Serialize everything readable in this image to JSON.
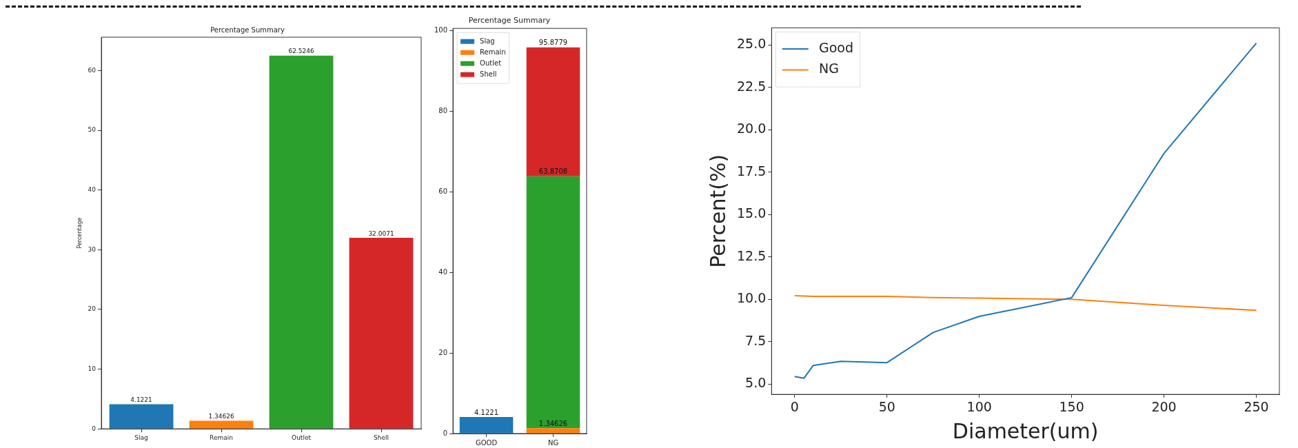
{
  "chart_data": [
    {
      "type": "bar",
      "title": "Percentage Summary",
      "ylabel": "Percentage",
      "categories": [
        "Slag",
        "Remain",
        "Outlet",
        "Shell"
      ],
      "values": [
        4.1221,
        1.34626,
        62.5246,
        32.0071
      ],
      "colors": [
        "#1f77b4",
        "#ff7f0e",
        "#2ca02c",
        "#d62728"
      ],
      "data_labels": true,
      "ylim": [
        0,
        65.6
      ],
      "yticks": [
        0,
        10,
        20,
        30,
        40,
        50,
        60
      ],
      "grid": false
    },
    {
      "type": "bar",
      "title": "Percentage Summary",
      "categories": [
        "GOOD",
        "NG"
      ],
      "stacked": true,
      "legend": "top left",
      "ylim": [
        0,
        100.6
      ],
      "yticks": [
        0,
        20,
        40,
        60,
        80,
        100
      ],
      "grid": false,
      "series": [
        {
          "name": "Slag",
          "color": "#1f77b4",
          "values": [
            4.1221,
            null
          ],
          "value_labels": [
            "4.1221",
            null
          ]
        },
        {
          "name": "Remain",
          "color": "#ff7f0e",
          "values": [
            null,
            1.34626
          ],
          "value_labels": [
            null,
            "1.34626"
          ]
        },
        {
          "name": "Outlet",
          "color": "#2ca02c",
          "values": [
            null,
            62.5246
          ]
        },
        {
          "name": "Shell",
          "color": "#d62728",
          "values": [
            null,
            32.0071
          ]
        }
      ],
      "annotations": [
        {
          "text": "63.8708",
          "x": "NG",
          "y": 63.8708
        },
        {
          "text": "95.8779",
          "x": "NG",
          "y": 95.8779
        }
      ]
    },
    {
      "type": "line",
      "xlabel": "Diameter(um)",
      "ylabel": "Percent(%)",
      "legend": "top left",
      "xlim": [
        -12.5,
        262.5
      ],
      "xticks": [
        0,
        50,
        100,
        150,
        200,
        250
      ],
      "ylim": [
        4.4,
        26.0
      ],
      "yticks": [
        {
          "value": 5,
          "label": "5.0"
        },
        7.5,
        {
          "value": 10,
          "label": "10.0"
        },
        12.5,
        {
          "value": 15,
          "label": "15.0"
        },
        17.5,
        {
          "value": 20,
          "label": "20.0"
        },
        22.5,
        {
          "value": 25,
          "label": "25.0"
        }
      ],
      "grid": false,
      "x": [
        0,
        5,
        10,
        25,
        50,
        75,
        100,
        150,
        200,
        250
      ],
      "series": [
        {
          "name": "Good",
          "color": "#1f77b4",
          "values": [
            5.45,
            5.35,
            6.1,
            6.35,
            6.27,
            8.05,
            9.0,
            10.1,
            18.6,
            25.1
          ]
        },
        {
          "name": "NG",
          "color": "#ff7f0e",
          "values": [
            10.22,
            10.2,
            10.18,
            10.18,
            10.18,
            10.1,
            10.07,
            10.0,
            9.65,
            9.35
          ]
        }
      ]
    }
  ]
}
